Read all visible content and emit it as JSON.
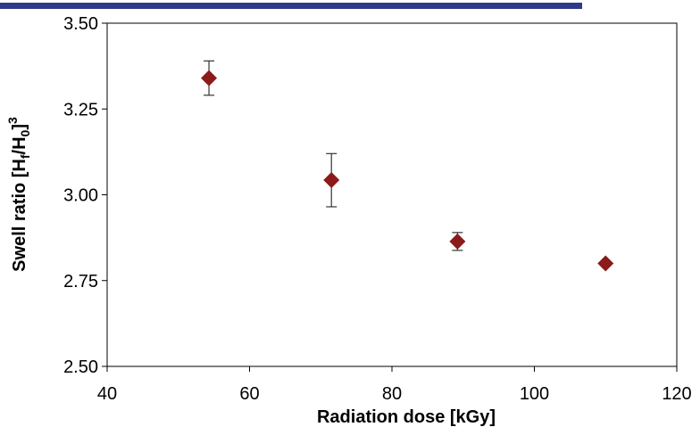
{
  "chart_data": {
    "type": "scatter",
    "title": "",
    "xlabel": "Radiation dose [kGy]",
    "ylabel": {
      "prefix": "Swell ratio [H",
      "sub1": "f",
      "mid": "/H",
      "sub2": "0",
      "close": "]",
      "sup": "3"
    },
    "xlim": [
      40,
      120
    ],
    "ylim": [
      2.5,
      3.5
    ],
    "xticks": [
      40,
      60,
      80,
      100,
      120
    ],
    "xtick_labels": [
      "40",
      "60",
      "80",
      "100",
      "120"
    ],
    "yticks": [
      2.5,
      2.75,
      3.0,
      3.25,
      3.5
    ],
    "ytick_labels": [
      "2.50",
      "2.75",
      "3.00",
      "3.25",
      "3.50"
    ],
    "grid": false,
    "legend": "none",
    "marker": "diamond",
    "marker_color": "#8b1a1a",
    "accent_bar_color": "#2d3a8c",
    "series": [
      {
        "x": [
          54.3,
          71.5,
          89.2,
          110
        ],
        "y": [
          3.34,
          3.043,
          2.864,
          2.8
        ],
        "err_low": [
          0.05,
          0.078,
          0.026,
          0
        ],
        "err_high": [
          0.05,
          0.077,
          0.026,
          0
        ]
      }
    ]
  }
}
